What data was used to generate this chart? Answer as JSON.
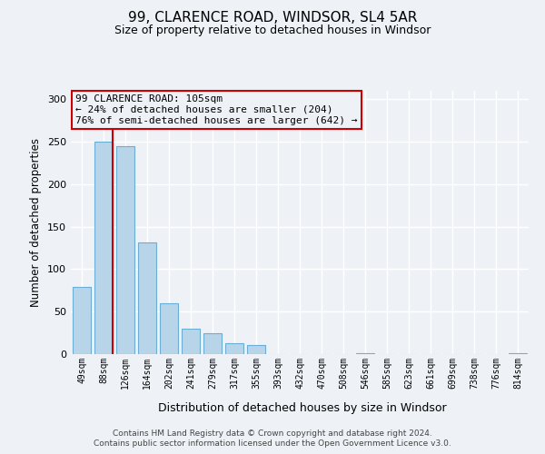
{
  "title": "99, CLARENCE ROAD, WINDSOR, SL4 5AR",
  "subtitle": "Size of property relative to detached houses in Windsor",
  "xlabel": "Distribution of detached houses by size in Windsor",
  "ylabel": "Number of detached properties",
  "footer_line1": "Contains HM Land Registry data © Crown copyright and database right 2024.",
  "footer_line2": "Contains public sector information licensed under the Open Government Licence v3.0.",
  "bin_labels": [
    "49sqm",
    "88sqm",
    "126sqm",
    "164sqm",
    "202sqm",
    "241sqm",
    "279sqm",
    "317sqm",
    "355sqm",
    "393sqm",
    "432sqm",
    "470sqm",
    "508sqm",
    "546sqm",
    "585sqm",
    "623sqm",
    "661sqm",
    "699sqm",
    "738sqm",
    "776sqm",
    "814sqm"
  ],
  "bar_values": [
    79,
    250,
    245,
    131,
    60,
    30,
    25,
    13,
    11,
    0,
    0,
    0,
    0,
    1,
    0,
    0,
    0,
    0,
    0,
    0,
    1
  ],
  "bar_color": "#b8d4e8",
  "bar_edge_color": "#6aaed6",
  "vline_x_idx": 1,
  "vline_color": "#cc0000",
  "annotation_line1": "99 CLARENCE ROAD: 105sqm",
  "annotation_line2": "← 24% of detached houses are smaller (204)",
  "annotation_line3": "76% of semi-detached houses are larger (642) →",
  "annotation_box_color": "#cc0000",
  "ylim": [
    0,
    310
  ],
  "yticks": [
    0,
    50,
    100,
    150,
    200,
    250,
    300
  ],
  "background_color": "#eef2f7"
}
